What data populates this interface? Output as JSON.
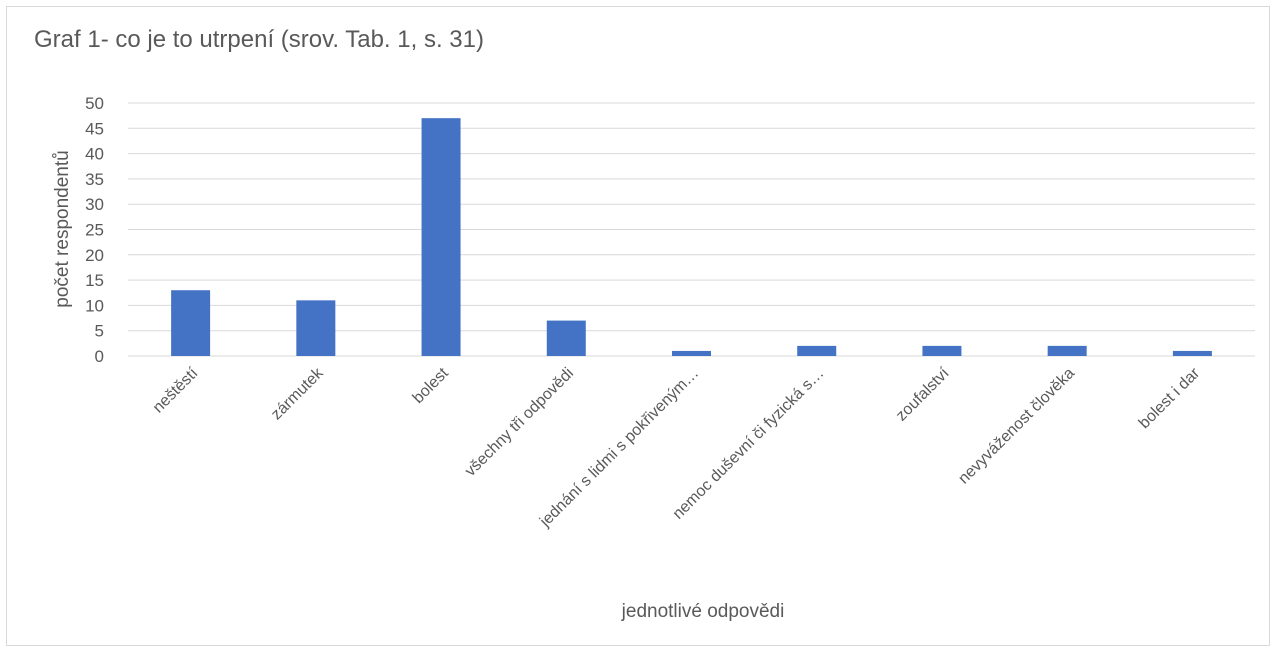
{
  "chart_data": {
    "type": "bar",
    "title": "Graf 1- co je to utrpení (srov. Tab. 1, s. 31)",
    "xlabel": "jednotlivé odpovědi",
    "ylabel": "počet respondentů",
    "ylim": [
      0,
      50
    ],
    "yticks": [
      0,
      5,
      10,
      15,
      20,
      25,
      30,
      35,
      40,
      45,
      50
    ],
    "categories": [
      "neštěstí",
      "zármutek",
      "bolest",
      "všechny tři odpovědi",
      "jednání s lidmi s pokřiveným…",
      "nemoc duševní či fyzická s…",
      "zoufalství",
      "nevyváženost člověka",
      "bolest i dar"
    ],
    "values": [
      13,
      11,
      47,
      7,
      1,
      2,
      2,
      2,
      1
    ],
    "grid": true,
    "legend": "none",
    "colors": {
      "bar": "#4472c4",
      "grid": "#d9d9d9",
      "text": "#595959"
    }
  }
}
